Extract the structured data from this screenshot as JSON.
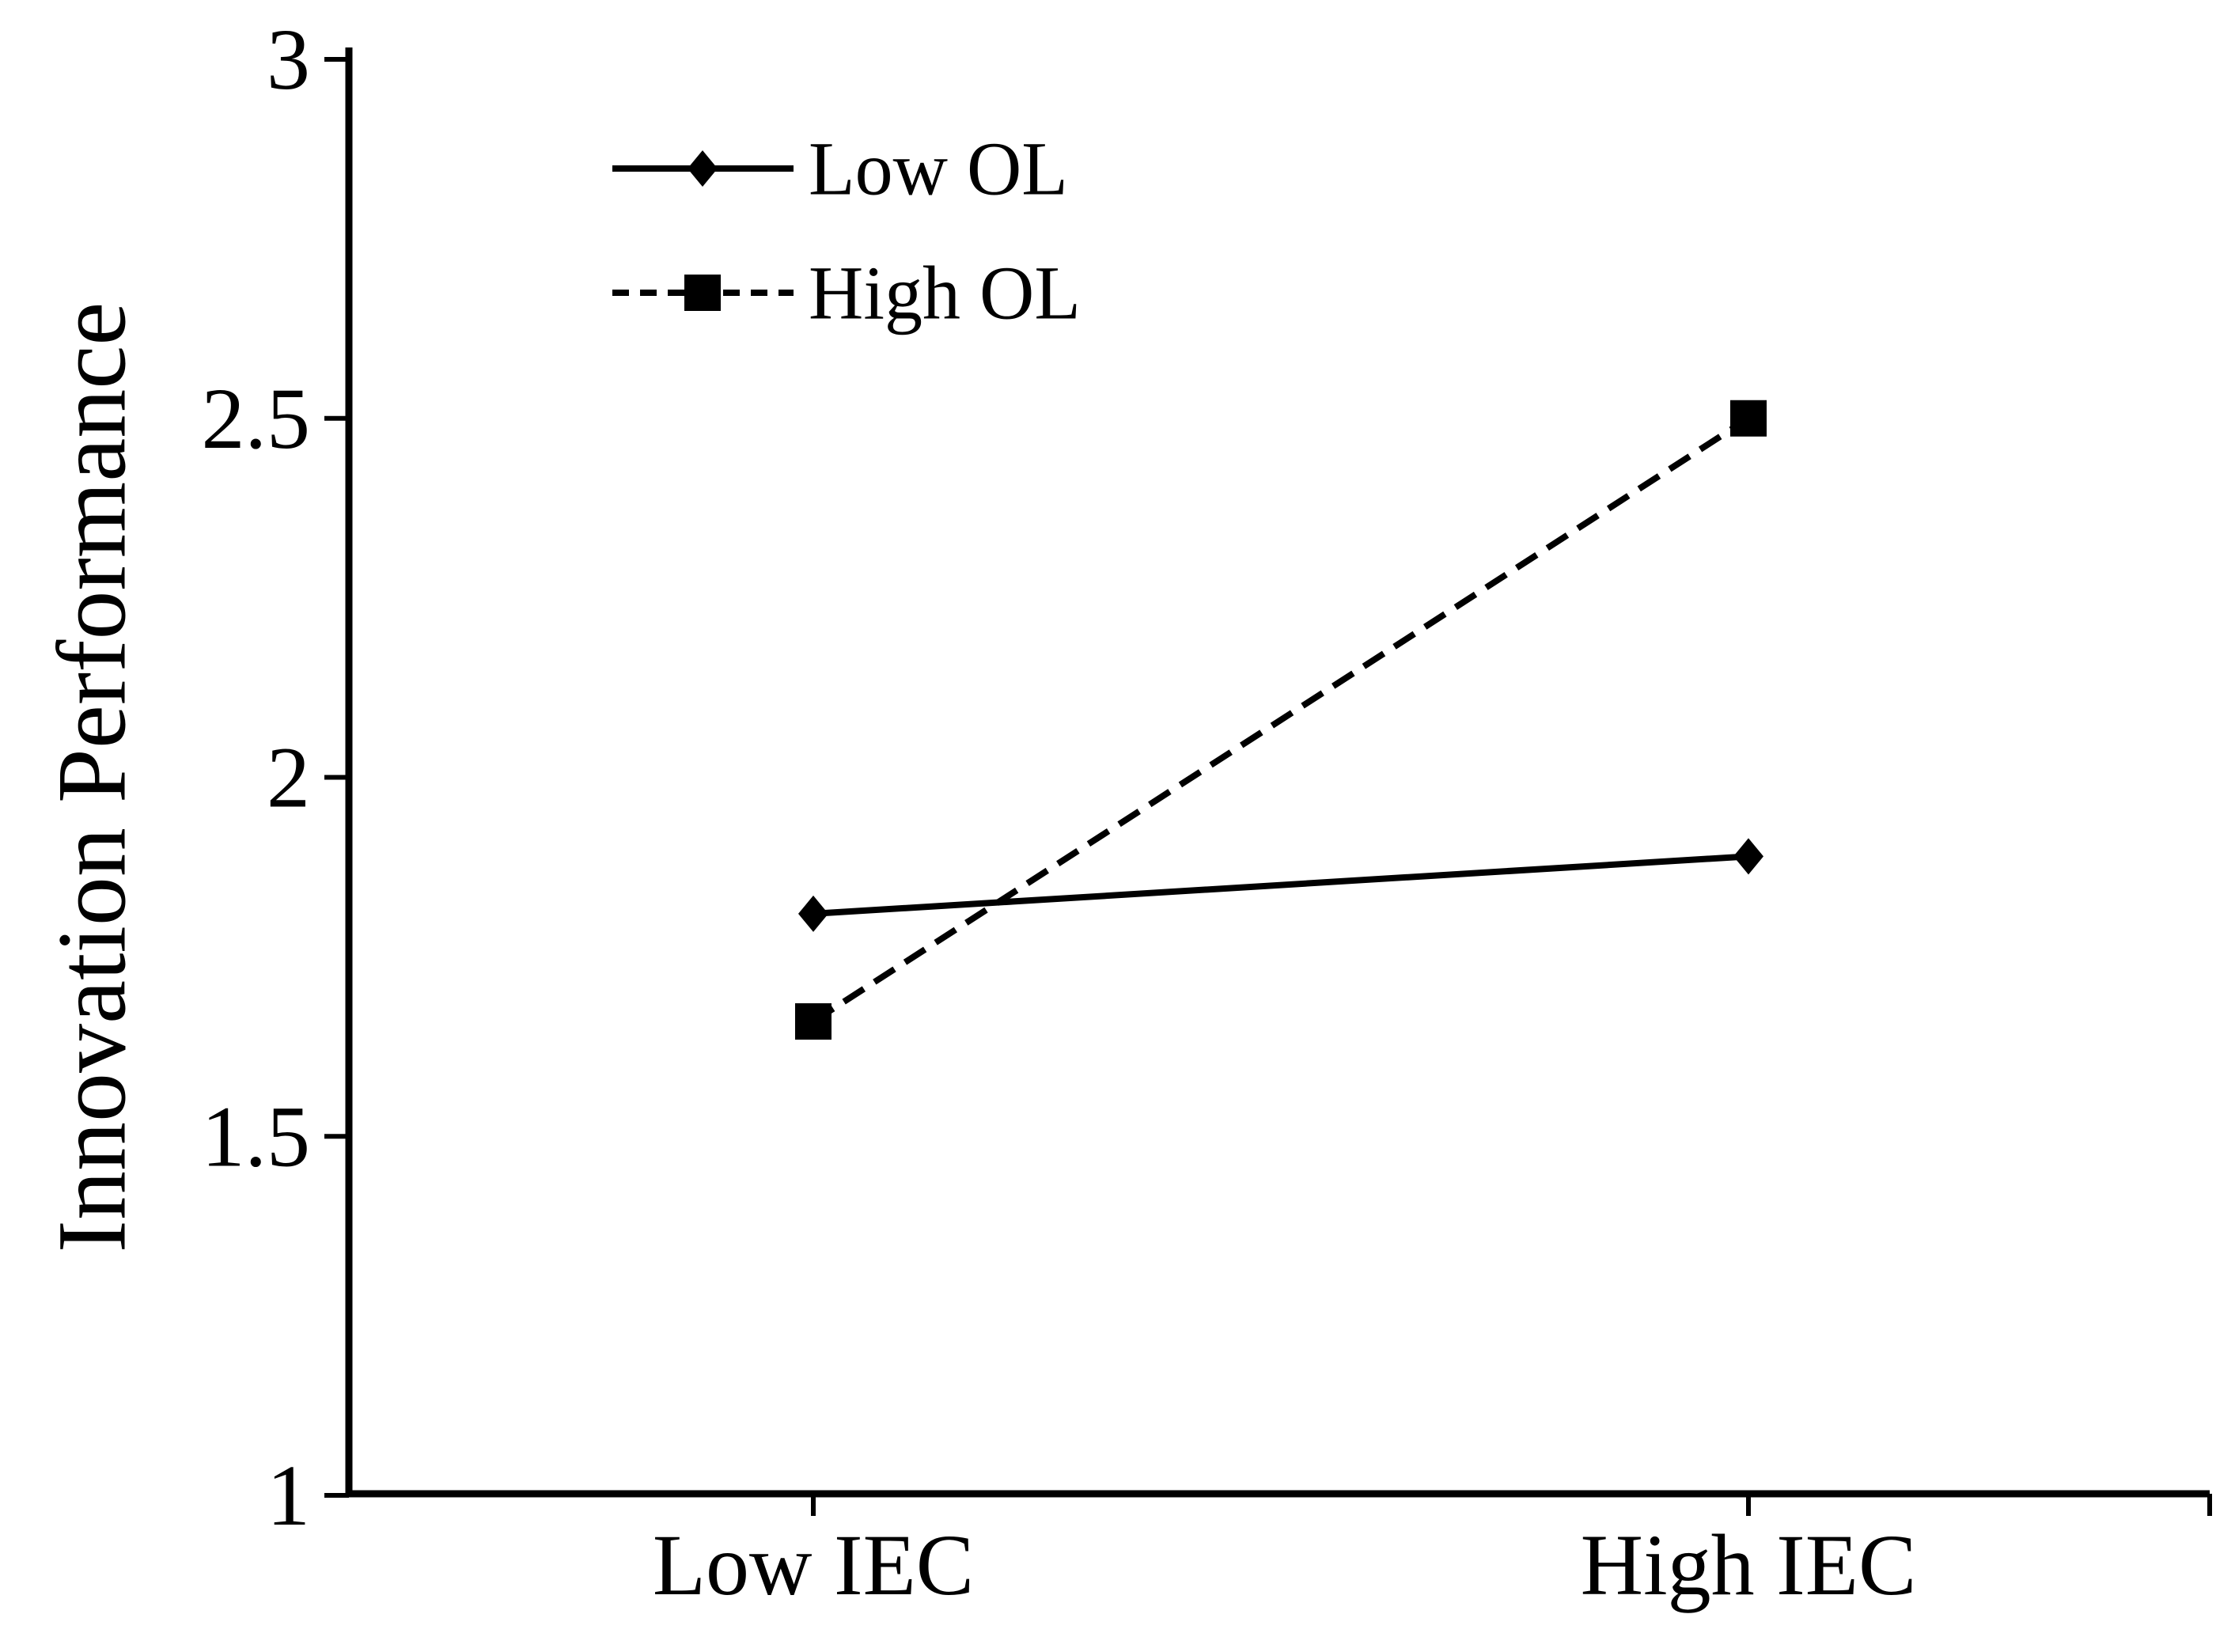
{
  "figure": {
    "background": "#ffffff",
    "ink_color": "#000000"
  },
  "chart_data": {
    "type": "line",
    "title": "",
    "categories": [
      "Low IEC",
      "High IEC"
    ],
    "xlabel": "",
    "ylabel": "Innovation Performance",
    "ylim": [
      1,
      3
    ],
    "ytick_interval": 0.5,
    "yticks": [
      3,
      2.5,
      2,
      1.5,
      1
    ],
    "ytick_labels": [
      "3",
      "2.5",
      "2",
      "1.5",
      "1"
    ],
    "grid": false,
    "legend_position": "inside-top-left",
    "series": [
      {
        "name": "Low OL",
        "values": [
          1.81,
          1.89
        ],
        "line_style": "solid",
        "marker": "diamond",
        "color": "#000000"
      },
      {
        "name": "High OL",
        "values": [
          1.66,
          2.5
        ],
        "line_style": "dashed",
        "marker": "square",
        "color": "#000000"
      }
    ]
  }
}
